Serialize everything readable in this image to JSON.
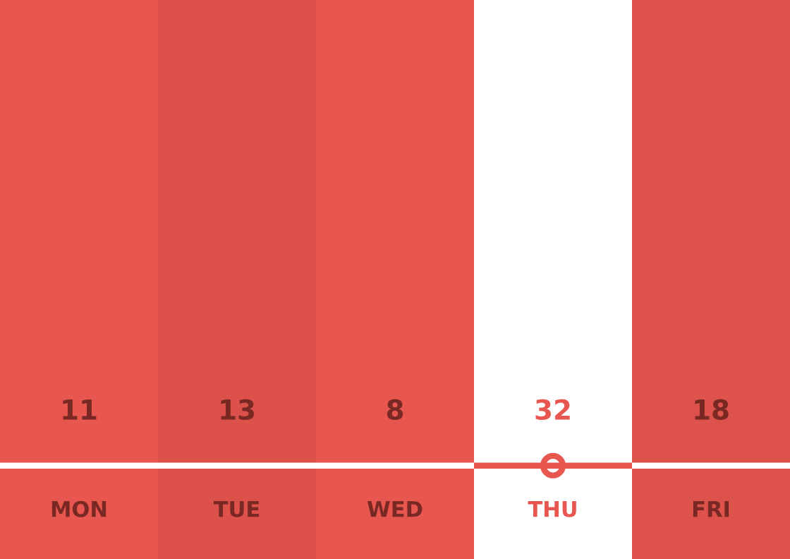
{
  "chart_data": {
    "type": "other",
    "categories": [
      "MON",
      "TUE",
      "WED",
      "THU",
      "FRI"
    ],
    "values": [
      11,
      13,
      8,
      32,
      18
    ],
    "colors": [
      "#e8574f",
      "#dc5149",
      "#e8574f",
      "#ffffff",
      "#dd524b"
    ],
    "data_labels": true
  }
}
